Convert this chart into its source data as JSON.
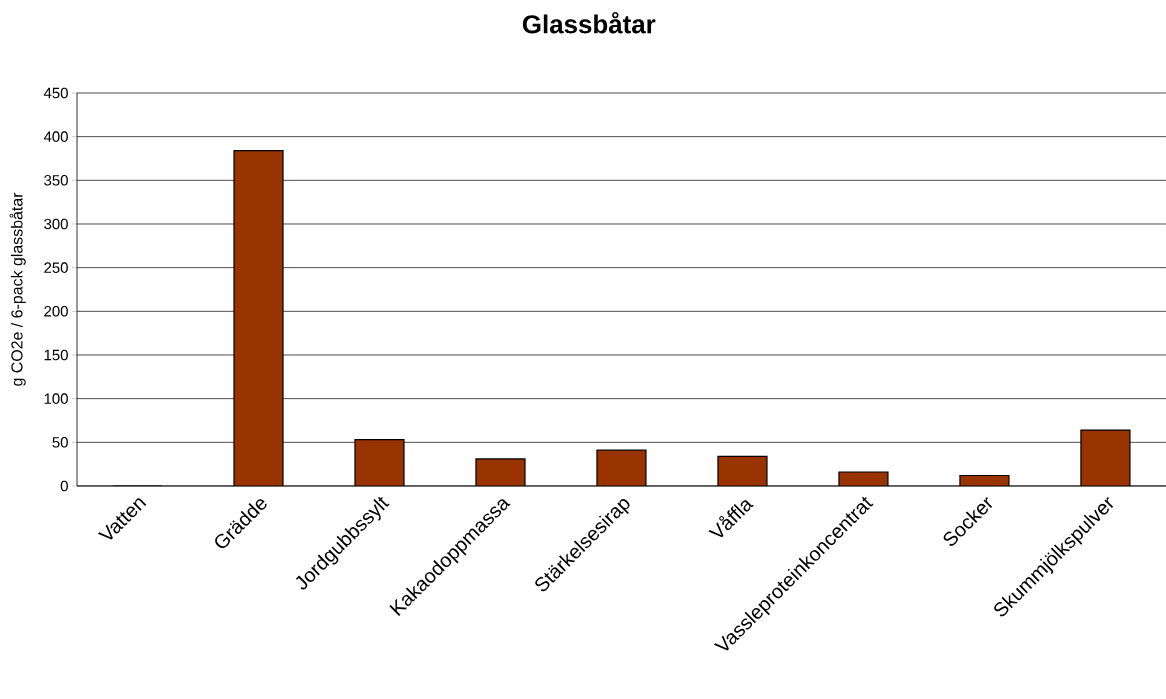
{
  "chart_data": {
    "type": "bar",
    "title": "Glassbåtar",
    "ylabel": "g CO2e / 6-pack glassbåtar",
    "categories": [
      "Vatten",
      "Grädde",
      "Jordgubbssylt",
      "Kakaodoppmassa",
      "Stärkelsesirap",
      "Våffla",
      "Vassleproteinkoncentrat",
      "Socker",
      "Skummjölkspulver"
    ],
    "values": [
      0,
      384,
      53,
      31,
      41,
      34,
      16,
      12,
      64
    ],
    "color": "#993300",
    "ylim": [
      0,
      450
    ],
    "yticks": [
      0,
      50,
      100,
      150,
      200,
      250,
      300,
      350,
      400,
      450
    ],
    "grid": "y"
  }
}
